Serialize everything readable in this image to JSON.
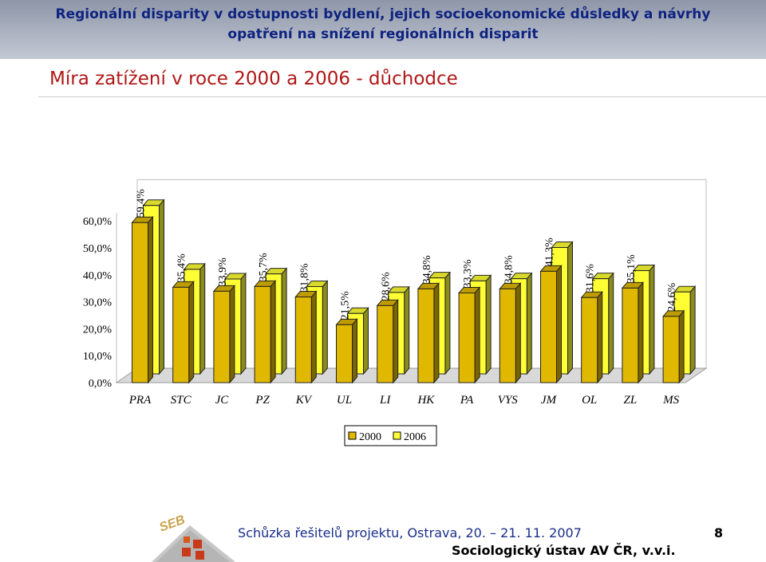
{
  "header": {
    "line1": "Regionální disparity v dostupnosti bydlení, jejich socioekonomické důsledky a návrhy",
    "line2": "opatření na snížení regionálních disparit"
  },
  "slide_title": "Míra zatížení v roce 2000 a 2006 - důchodce",
  "chart_data": {
    "type": "bar",
    "categories": [
      "PRA",
      "STC",
      "JC",
      "PZ",
      "KV",
      "UL",
      "LI",
      "HK",
      "PA",
      "VYS",
      "JM",
      "OL",
      "ZL",
      "MS"
    ],
    "series": [
      {
        "name": "2000",
        "values": [
          59.4,
          35.4,
          33.9,
          35.7,
          31.8,
          21.5,
          28.6,
          34.8,
          33.3,
          34.8,
          41.3,
          31.6,
          35.1,
          24.6
        ],
        "color": "#e0b800"
      },
      {
        "name": "2006",
        "values": [
          62.5,
          38.8,
          35.2,
          37.1,
          32.4,
          22.4,
          30.2,
          35.6,
          34.5,
          35.3,
          46.9,
          35.3,
          38.3,
          30.4
        ],
        "color": "#ffff33"
      }
    ],
    "data_labels": [
      "59,4%",
      "35,4%",
      "33,9%",
      "35,7%",
      "31,8%",
      "21,5%",
      "28,6%",
      "34,8%",
      "33,3%",
      "34,8%",
      "41,3%",
      "31,6%",
      "35,1%",
      "24,6%"
    ],
    "yticks": [
      "0,0%",
      "10,0%",
      "20,0%",
      "30,0%",
      "40,0%",
      "50,0%",
      "60,0%"
    ],
    "ylim": [
      0,
      60
    ],
    "grid": false,
    "legend_position": "bottom"
  },
  "footer": {
    "meeting": "Schůzka řešitelů projektu, Ostrava, 20. – 21. 11. 2007",
    "institution": "Sociologický ústav AV ČR, v.v.i.",
    "page_number": "8"
  }
}
